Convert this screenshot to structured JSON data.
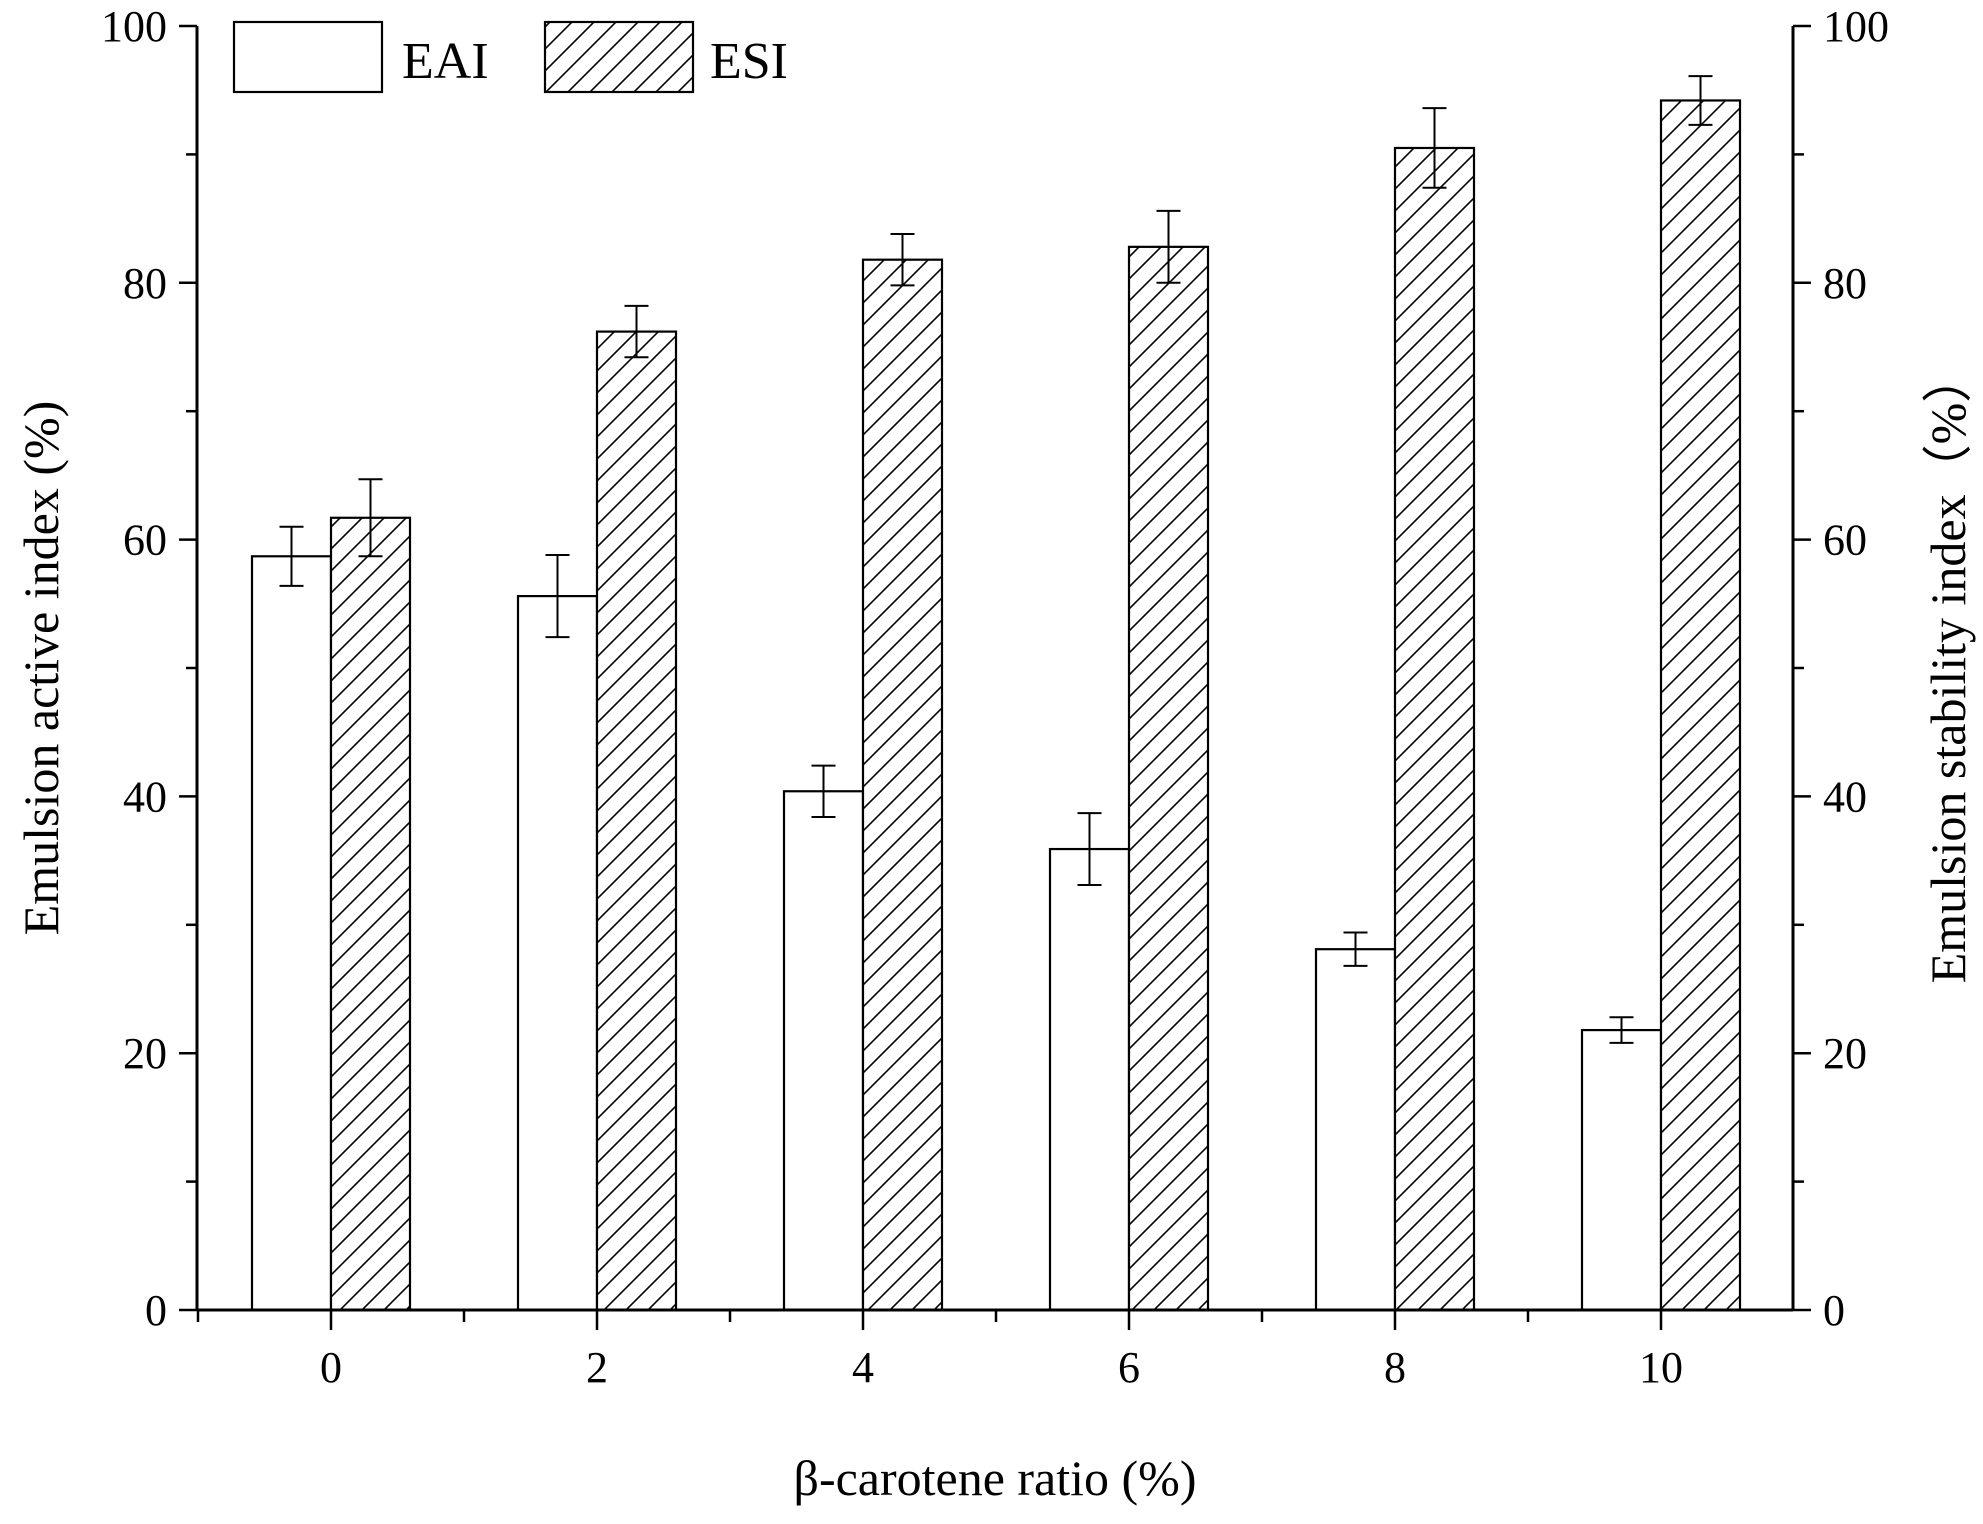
{
  "chart_data": {
    "type": "bar",
    "title": "",
    "xlabel": "β-carotene ratio (%)",
    "ylabel": "Emulsion active index (%)",
    "ylabel_right": "Emulsion stability index（%）",
    "categories": [
      "0",
      "2",
      "4",
      "6",
      "8",
      "10"
    ],
    "ylim": [
      0,
      100
    ],
    "ylim_right": [
      0,
      100
    ],
    "y_ticks": [
      "0",
      "20",
      "40",
      "60",
      "80",
      "100"
    ],
    "y_ticks_right": [
      "0",
      "20",
      "40",
      "60",
      "80",
      "100"
    ],
    "grid": false,
    "legend_position": "top-left",
    "series": [
      {
        "name": "EAI",
        "axis": "left",
        "fill": "#ffffff",
        "pattern": "none",
        "values": [
          58.7,
          55.6,
          40.4,
          35.9,
          28.1,
          21.8
        ],
        "errors": [
          2.3,
          3.2,
          2.0,
          2.8,
          1.3,
          1.0
        ]
      },
      {
        "name": "ESI",
        "axis": "right",
        "fill": "#ffffff",
        "pattern": "diagonal-hatch",
        "values": [
          61.7,
          76.2,
          81.8,
          82.8,
          90.5,
          94.2
        ],
        "errors": [
          3.0,
          2.0,
          2.0,
          2.8,
          3.1,
          1.9
        ]
      }
    ],
    "colors": {
      "stroke": "#000000",
      "background": "#ffffff"
    }
  }
}
